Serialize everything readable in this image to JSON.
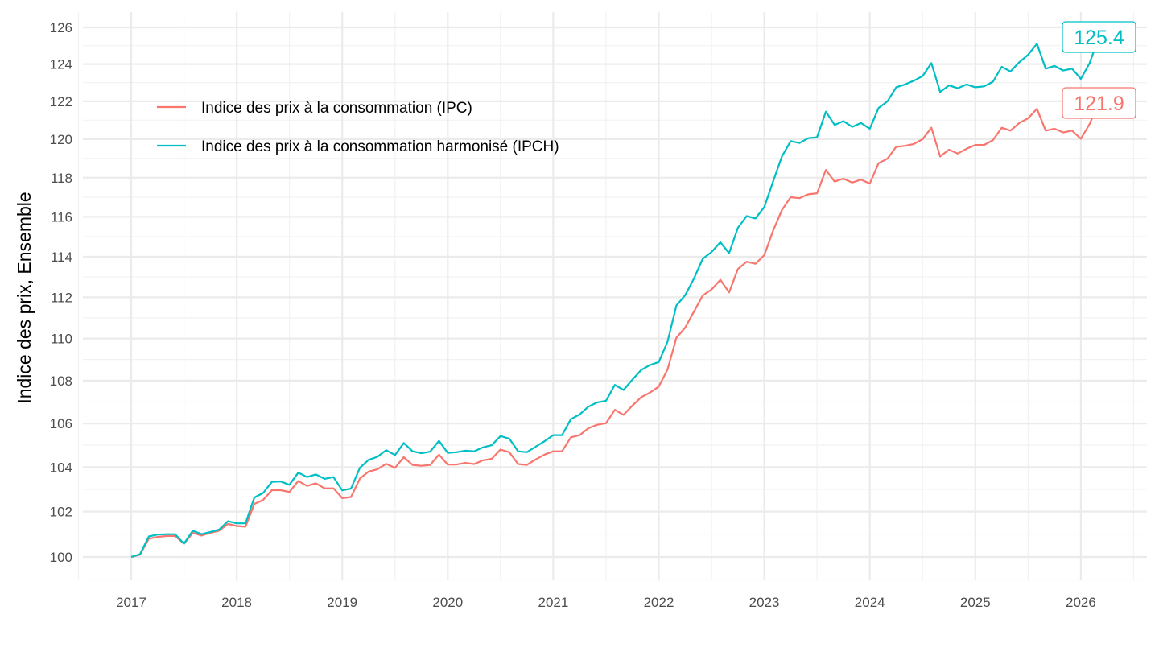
{
  "chart_data": {
    "type": "line",
    "title": "",
    "xlabel": "",
    "ylabel": "Indice des prix, Ensemble",
    "y_scale": "log",
    "ylim": [
      99,
      126.6
    ],
    "xlim": [
      2016.54,
      2026.63
    ],
    "x_start": "2017-01",
    "frequency": "monthly",
    "x_ticks": [
      "2017",
      "2018",
      "2019",
      "2020",
      "2021",
      "2022",
      "2023",
      "2024",
      "2025",
      "2026"
    ],
    "y_ticks": [
      100,
      102,
      104,
      106,
      108,
      110,
      112,
      114,
      116,
      118,
      120,
      122,
      124,
      126
    ],
    "grid": true,
    "legend_position": "top-left",
    "series": [
      {
        "name": "Indice des prix à la consommation (IPC)",
        "color": "#F8766D",
        "end_label": "121.9",
        "values": [
          100.0,
          100.1,
          100.8,
          100.88,
          100.92,
          100.92,
          100.58,
          101.06,
          100.94,
          101.06,
          101.15,
          101.45,
          101.36,
          101.33,
          102.34,
          102.52,
          102.96,
          102.96,
          102.88,
          103.37,
          103.15,
          103.27,
          103.04,
          103.04,
          102.6,
          102.65,
          103.48,
          103.8,
          103.9,
          104.15,
          103.97,
          104.45,
          104.1,
          104.06,
          104.1,
          104.57,
          104.12,
          104.12,
          104.19,
          104.14,
          104.31,
          104.38,
          104.8,
          104.68,
          104.14,
          104.1,
          104.35,
          104.57,
          104.72,
          104.72,
          105.36,
          105.46,
          105.78,
          105.94,
          106.01,
          106.63,
          106.4,
          106.83,
          107.22,
          107.44,
          107.72,
          108.53,
          110.04,
          110.53,
          111.3,
          112.09,
          112.38,
          112.86,
          112.24,
          113.39,
          113.75,
          113.65,
          114.08,
          115.3,
          116.35,
          117.0,
          116.95,
          117.15,
          117.2,
          118.4,
          117.8,
          117.95,
          117.75,
          117.9,
          117.7,
          118.75,
          118.98,
          119.6,
          119.65,
          119.75,
          120.0,
          120.6,
          119.1,
          119.45,
          119.25,
          119.5,
          119.7,
          119.7,
          119.95,
          120.6,
          120.45,
          120.85,
          121.1,
          121.6,
          120.45,
          120.55,
          120.35,
          120.45,
          120.02,
          120.8,
          121.9
        ]
      },
      {
        "name": "Indice des prix à la consommation harmonisé (IPCH)",
        "color": "#00BFC4",
        "end_label": "125.4",
        "values": [
          100.0,
          100.12,
          100.9,
          100.98,
          101.0,
          101.0,
          100.58,
          101.15,
          101.0,
          101.1,
          101.2,
          101.57,
          101.48,
          101.48,
          102.63,
          102.83,
          103.33,
          103.35,
          103.2,
          103.75,
          103.55,
          103.67,
          103.47,
          103.55,
          102.95,
          103.03,
          103.97,
          104.33,
          104.47,
          104.77,
          104.55,
          105.1,
          104.72,
          104.63,
          104.7,
          105.2,
          104.65,
          104.68,
          104.75,
          104.72,
          104.9,
          105.0,
          105.42,
          105.3,
          104.72,
          104.68,
          104.93,
          105.18,
          105.46,
          105.46,
          106.2,
          106.42,
          106.78,
          106.98,
          107.05,
          107.8,
          107.56,
          108.05,
          108.5,
          108.74,
          108.88,
          109.85,
          111.6,
          112.1,
          112.92,
          113.9,
          114.23,
          114.72,
          114.18,
          115.45,
          116.04,
          115.92,
          116.5,
          117.8,
          119.1,
          119.9,
          119.8,
          120.05,
          120.1,
          121.45,
          120.75,
          120.95,
          120.65,
          120.85,
          120.55,
          121.65,
          122.0,
          122.75,
          122.9,
          123.1,
          123.35,
          124.05,
          122.5,
          122.85,
          122.7,
          122.9,
          122.75,
          122.8,
          123.05,
          123.85,
          123.6,
          124.1,
          124.5,
          125.1,
          123.75,
          123.9,
          123.65,
          123.75,
          123.2,
          124.05,
          125.4
        ]
      }
    ]
  }
}
